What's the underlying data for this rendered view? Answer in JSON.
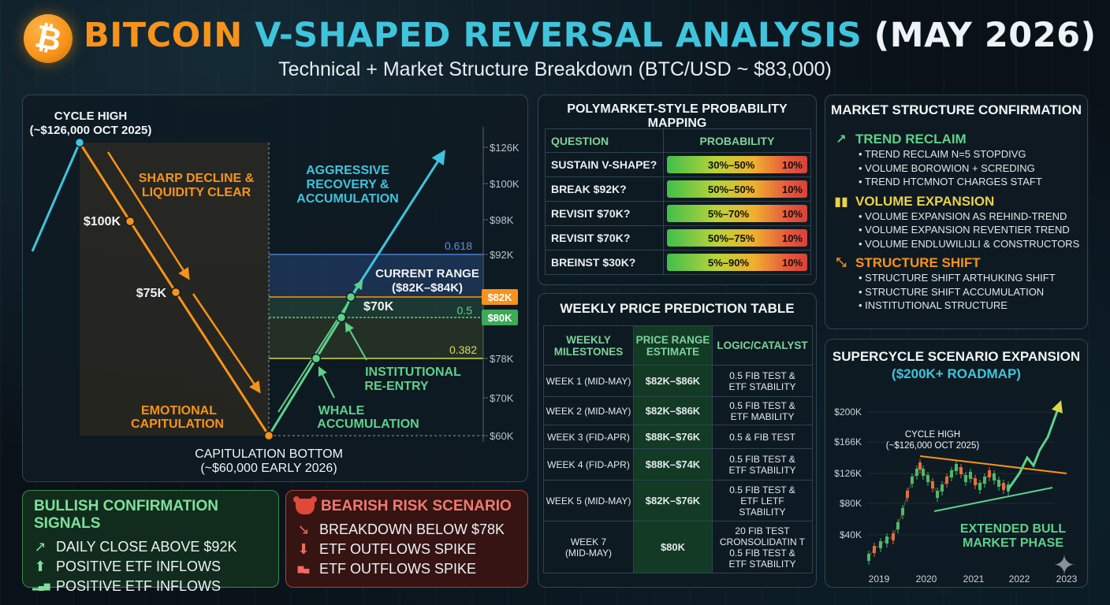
{
  "header": {
    "logo_symbol": "₿",
    "title_part1": "BITCOIN",
    "title_part2": "V-SHAPED REVERSAL ANALYSIS",
    "title_part3": "(MAY 2026)",
    "subtitle": "Technical + Market Structure Breakdown (BTC/USD ~ $83,000)"
  },
  "colors": {
    "orange": "#f7931a",
    "teal": "#3fc4dc",
    "green": "#5fd08a",
    "red": "#e0483a"
  },
  "chart_data": [
    {
      "type": "line",
      "y_ticks": [
        "$126K",
        "$100K",
        "$98K",
        "$92K",
        "$82K",
        "$80K",
        "$78K",
        "$70K",
        "$60K"
      ],
      "series": [
        {
          "values": [
            "$126K",
            "$100K",
            "$75K",
            "$60K"
          ]
        },
        {
          "values": [
            "$60K",
            "$70K",
            "$80K",
            "$82K"
          ]
        }
      ],
      "price_tags": [
        "$82K",
        "$80K"
      ],
      "fib_levels": [
        "0.618",
        "0.5",
        "0.382"
      ],
      "annotations": {
        "cycle_high": [
          "CYCLE HIGH",
          "(~$126,000 OCT 2025)"
        ],
        "decline": [
          "SHARP DECLINE &",
          "LIQUIDITY CLEAR"
        ],
        "recovery": [
          "AGGRESSIVE",
          "RECOVERY &",
          "ACCUMULATION"
        ],
        "lbl_100k": "$100K",
        "lbl_75k": "$75K",
        "lbl_70k": "$70K",
        "current_range": [
          "CURRENT RANGE",
          "($82K–$84K)"
        ],
        "institutional": [
          "INSTITUTIONAL",
          "RE-ENTRY"
        ],
        "whale": [
          "WHALE",
          "ACCUMULATION"
        ],
        "emotional": [
          "EMOTIONAL",
          "CAPITULATION"
        ],
        "bottom": [
          "CAPITULATION BOTTOM",
          "(~$60,000 EARLY 2026)"
        ]
      }
    },
    {
      "type": "line",
      "title": "SUPERCYCLE SCENARIO EXPANSION",
      "subtitle": "($200K+ ROADMAP)",
      "x_ticks": [
        "2019",
        "2020",
        "2021",
        "2022",
        "2023"
      ],
      "y_ticks": [
        "$200K",
        "$166K",
        "$126K",
        "$80K",
        "$40K"
      ],
      "annotations": {
        "cycle_high": [
          "CYCLE HIGH",
          "(~$126,000 OCT 2025)"
        ],
        "phase": [
          "EXTENDED BULL",
          "MARKET PHASE"
        ]
      }
    }
  ],
  "polymarket": {
    "title": "POLYMARKET-STYLE PROBABILITY MAPPING",
    "col_question": "QUESTION",
    "col_probability": "PROBABILITY",
    "rows": [
      {
        "question": "SUSTAIN V-SHAPE?",
        "range": "30%–50%",
        "pct": "10%"
      },
      {
        "question": "BREAK $92K?",
        "range": "50%–50%",
        "pct": "10%"
      },
      {
        "question": "REVISIT $70K?",
        "range": "5%–70%",
        "pct": "10%"
      },
      {
        "question": "REVISIT $70K?",
        "range": "50%–75%",
        "pct": "10%"
      },
      {
        "question": "BREINST $30K?",
        "range": "5%–90%",
        "pct": "10%"
      }
    ]
  },
  "weekly": {
    "title": "WEEKLY PRICE PREDICTION TABLE",
    "col1": [
      "WEEKLY",
      "MILESTONES"
    ],
    "col2": [
      "PRICE RANGE",
      "ESTIMATE"
    ],
    "col3": "LOGIC/CATALYST",
    "rows": [
      {
        "week": "WEEK 1 (MID-MAY)",
        "range": "$82K–$86K",
        "logic": [
          "0.5 FIB TEST &",
          "ETF STABILITY"
        ]
      },
      {
        "week": "WEEK 2 (MID-MAY)",
        "range": "$82K–$86K",
        "logic": [
          "0.5 FIB TEST &",
          "ETF MABILITY"
        ]
      },
      {
        "week": "WEEK 3 (FID-APR)",
        "range": "$88K–$76K",
        "logic": [
          "0.5 & FIB TEST"
        ]
      },
      {
        "week": "WEEK 4 (FID-APR)",
        "range": "$88K–$74K",
        "logic": [
          "0.5 FIB TEST &",
          "ETF STABILITY"
        ]
      },
      {
        "week": "WEEK 5 (MID-MAY)",
        "range": "$82K–$76K",
        "logic": [
          "0.5 FIB TEST &",
          "ETF LETF",
          "STABILITY"
        ]
      },
      {
        "week": "WEEK 7 (MID-MAY)",
        "range": "$80K",
        "logic": [
          "20 FIB TEST",
          "CRONSOLIDATIN T",
          "0.5 FIB TEST &",
          "ETF STABILITY"
        ]
      }
    ]
  },
  "market_structure": {
    "title": "MARKET STRUCTURE CONFIRMATION",
    "groups": [
      {
        "icon": "trend-up-icon",
        "heading": "TREND RECLAIM",
        "color": "#5fd08a",
        "items": [
          "• TREND RECLAIM N=5 STOPDIVG",
          "• VOLUME BOROWION + SCREDING",
          "• TREND HTCMNOT CHARGES STAFT"
        ]
      },
      {
        "icon": "volume-bars-icon",
        "heading": "VOLUME EXPANSION",
        "color": "#e7d24a",
        "items": [
          "• VOLUME EXPANSION AS REHIND-TREND",
          "• VOLUME EXPANSION REVENTIER TREND",
          "• VOLUME ENDLUWILIJLI & CONSTRUCTORS"
        ]
      },
      {
        "icon": "structure-shift-icon",
        "heading": "STRUCTURE SHIFT",
        "color": "#f7931a",
        "items": [
          "• STRUCTURE SHIFT ARTHUKING SHIFT",
          "• STRUCTURE SHIFT ACCUMULATION",
          "• INSTITUTIONAL STRUCTURE"
        ]
      }
    ]
  },
  "bullish": {
    "title": "BULLISH CONFIRMATION SIGNALS",
    "items": [
      {
        "icon": "trend-up-icon",
        "text": "DAILY CLOSE ABOVE $92K"
      },
      {
        "icon": "arrow-up-icon",
        "text": "POSITIVE ETF INFLOWS"
      },
      {
        "icon": "bar-growth-icon",
        "text": "POSITIVE ETF INFLOWS"
      }
    ]
  },
  "bearish": {
    "title": "BEARISH RISK SCENARIO",
    "bear_icon": "bear-icon",
    "items": [
      {
        "icon": "trend-down-icon",
        "text": "BREAKDOWN BELOW $78K"
      },
      {
        "icon": "arrow-down-icon",
        "text": "ETF OUTFLOWS SPIKE"
      },
      {
        "icon": "etf-chart-icon",
        "text": "ETF OUTFLOWS SPIKE"
      }
    ]
  }
}
